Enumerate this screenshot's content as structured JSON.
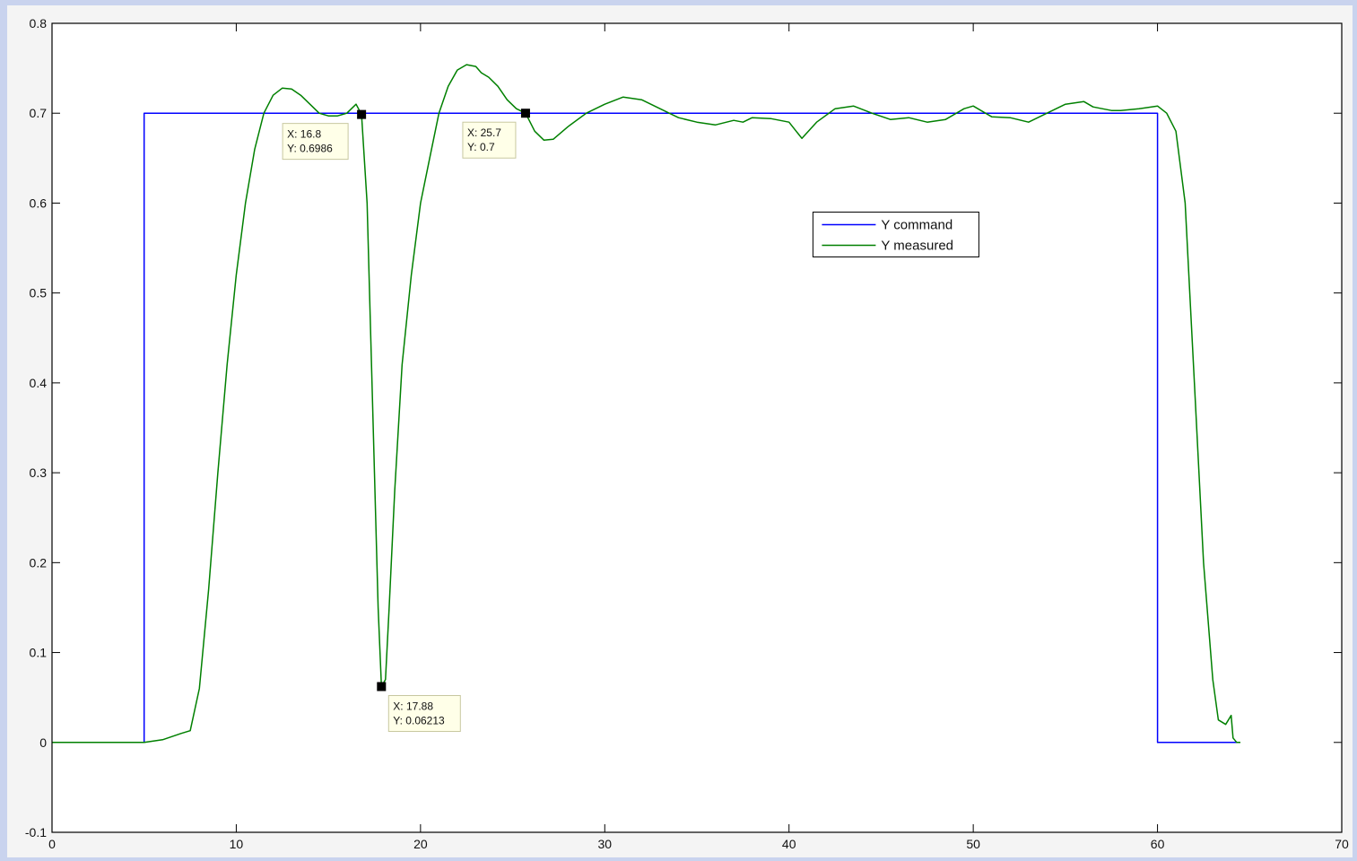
{
  "chart_data": {
    "type": "line",
    "title": "",
    "xlabel": "",
    "ylabel": "",
    "xlim": [
      0,
      70
    ],
    "ylim": [
      -0.1,
      0.8
    ],
    "x_ticks": [
      0,
      10,
      20,
      30,
      40,
      50,
      60,
      70
    ],
    "y_ticks": [
      -0.1,
      0,
      0.1,
      0.2,
      0.3,
      0.4,
      0.5,
      0.6,
      0.7,
      0.8
    ],
    "x_tick_labels": [
      "0",
      "10",
      "20",
      "30",
      "40",
      "50",
      "60",
      "70"
    ],
    "y_tick_labels": [
      "-0.1",
      "0",
      "0.1",
      "0.2",
      "0.3",
      "0.4",
      "0.5",
      "0.6",
      "0.7",
      "0.8"
    ],
    "grid": false,
    "legend_position": "upper-right-center",
    "series": [
      {
        "name": "Y command",
        "color": "#0000ff",
        "x": [
          0,
          5,
          5,
          60,
          60,
          64.3
        ],
        "y": [
          0,
          0,
          0.7,
          0.7,
          0,
          0
        ]
      },
      {
        "name": "Y measured",
        "color": "#008000",
        "x": [
          0,
          5,
          6,
          7,
          7.5,
          8,
          8.5,
          9,
          9.5,
          10,
          10.5,
          11,
          11.5,
          12,
          12.5,
          13,
          13.5,
          14,
          14.5,
          15,
          15.5,
          16,
          16.5,
          16.8,
          17.1,
          17.3,
          17.5,
          17.7,
          17.88,
          18.1,
          18.3,
          18.6,
          19,
          19.5,
          20,
          20.5,
          21,
          21.5,
          22,
          22.5,
          23,
          23.3,
          23.7,
          24.2,
          24.7,
          25.2,
          25.7,
          26.2,
          26.7,
          27.2,
          28,
          29,
          30,
          31,
          32,
          33,
          34,
          35,
          36,
          37,
          37.5,
          38,
          39,
          40,
          40.7,
          41.5,
          42.5,
          43.5,
          44.5,
          45.5,
          46.5,
          47.5,
          48.5,
          49.5,
          50,
          51,
          52,
          53,
          54,
          55,
          56,
          56.5,
          57,
          57.5,
          58,
          59,
          60,
          60.5,
          61,
          61.5,
          62,
          62.5,
          63,
          63.3,
          63.7,
          64,
          64.1,
          64.3,
          64.5
        ],
        "y": [
          0,
          0,
          0.003,
          0.01,
          0.013,
          0.06,
          0.17,
          0.3,
          0.42,
          0.52,
          0.6,
          0.66,
          0.7,
          0.72,
          0.728,
          0.727,
          0.72,
          0.71,
          0.7,
          0.697,
          0.697,
          0.7,
          0.71,
          0.6986,
          0.6,
          0.45,
          0.3,
          0.15,
          0.06213,
          0.07,
          0.15,
          0.28,
          0.42,
          0.52,
          0.6,
          0.65,
          0.7,
          0.73,
          0.748,
          0.754,
          0.752,
          0.745,
          0.74,
          0.73,
          0.715,
          0.705,
          0.7,
          0.68,
          0.67,
          0.671,
          0.685,
          0.7,
          0.71,
          0.718,
          0.715,
          0.705,
          0.695,
          0.69,
          0.687,
          0.692,
          0.69,
          0.695,
          0.694,
          0.69,
          0.672,
          0.69,
          0.705,
          0.708,
          0.7,
          0.693,
          0.695,
          0.69,
          0.693,
          0.705,
          0.708,
          0.696,
          0.695,
          0.69,
          0.7,
          0.71,
          0.713,
          0.707,
          0.705,
          0.703,
          0.703,
          0.705,
          0.708,
          0.7,
          0.68,
          0.6,
          0.4,
          0.2,
          0.07,
          0.025,
          0.02,
          0.03,
          0.005,
          0.0,
          0.0
        ]
      }
    ],
    "annotations": [
      {
        "x": 16.8,
        "y": 0.6986,
        "lines": [
          "X: 16.8",
          "Y: 0.6986"
        ]
      },
      {
        "x": 17.88,
        "y": 0.06213,
        "lines": [
          "X: 17.88",
          "Y: 0.06213"
        ]
      },
      {
        "x": 25.7,
        "y": 0.7,
        "lines": [
          "X: 25.7",
          "Y: 0.7"
        ]
      }
    ]
  }
}
